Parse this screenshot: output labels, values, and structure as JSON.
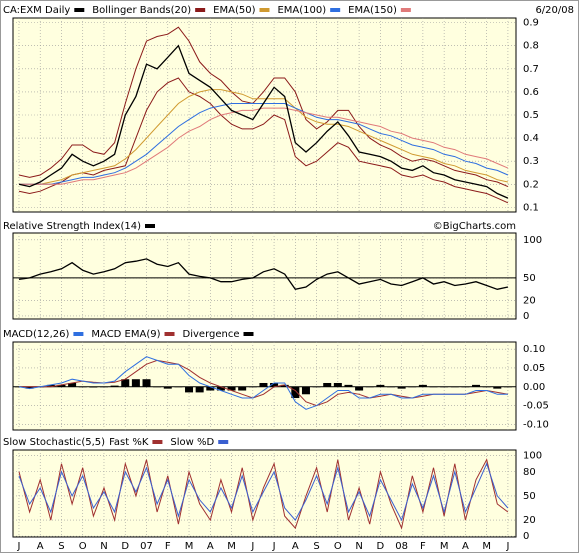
{
  "chart_data": [
    {
      "type": "line",
      "title": "CA:EXM Daily",
      "date": "6/20/08",
      "x": [
        0,
        0.5,
        1,
        1.5,
        2,
        2.5,
        3,
        3.5,
        4,
        4.5,
        5,
        5.5,
        6,
        6.5,
        7,
        7.5,
        8,
        8.5,
        9,
        9.5,
        10,
        10.5,
        11,
        11.5,
        12,
        12.5,
        13,
        13.5,
        14,
        14.5,
        15,
        15.5,
        16,
        16.5,
        17,
        17.5,
        18,
        18.5,
        19,
        19.5,
        20,
        20.5,
        21,
        21.5,
        22,
        22.5,
        23
      ],
      "xlim": [
        -0.28,
        23.38
      ],
      "ylim": [
        0.08,
        0.92
      ],
      "yticks": [
        0.1,
        0.2,
        0.3,
        0.4,
        0.5,
        0.6,
        0.7,
        0.8,
        0.9
      ],
      "grid": true,
      "series": [
        {
          "name": "Bollinger Bands(20)",
          "color": "#8b1a1a",
          "kind": "band",
          "upper": [
            0.24,
            0.23,
            0.24,
            0.27,
            0.31,
            0.37,
            0.37,
            0.34,
            0.33,
            0.38,
            0.55,
            0.7,
            0.82,
            0.84,
            0.85,
            0.88,
            0.82,
            0.73,
            0.68,
            0.65,
            0.6,
            0.56,
            0.55,
            0.6,
            0.66,
            0.66,
            0.6,
            0.48,
            0.44,
            0.47,
            0.52,
            0.52,
            0.45,
            0.4,
            0.37,
            0.35,
            0.32,
            0.3,
            0.31,
            0.3,
            0.28,
            0.26,
            0.25,
            0.24,
            0.22,
            0.21,
            0.19
          ],
          "lower": [
            0.17,
            0.16,
            0.17,
            0.19,
            0.21,
            0.24,
            0.25,
            0.24,
            0.26,
            0.27,
            0.28,
            0.4,
            0.52,
            0.6,
            0.64,
            0.66,
            0.6,
            0.58,
            0.55,
            0.5,
            0.46,
            0.44,
            0.44,
            0.46,
            0.5,
            0.48,
            0.32,
            0.28,
            0.3,
            0.34,
            0.38,
            0.36,
            0.3,
            0.29,
            0.28,
            0.27,
            0.24,
            0.23,
            0.24,
            0.22,
            0.21,
            0.19,
            0.18,
            0.17,
            0.16,
            0.14,
            0.12
          ]
        },
        {
          "name": "EMA(50)",
          "color": "#d09a30",
          "values": [
            0.2,
            0.2,
            0.2,
            0.21,
            0.22,
            0.24,
            0.25,
            0.26,
            0.27,
            0.28,
            0.31,
            0.35,
            0.4,
            0.45,
            0.5,
            0.55,
            0.58,
            0.6,
            0.61,
            0.61,
            0.6,
            0.59,
            0.57,
            0.57,
            0.57,
            0.57,
            0.53,
            0.49,
            0.47,
            0.46,
            0.46,
            0.45,
            0.43,
            0.41,
            0.39,
            0.37,
            0.35,
            0.33,
            0.32,
            0.31,
            0.29,
            0.28,
            0.26,
            0.25,
            0.24,
            0.22,
            0.21
          ]
        },
        {
          "name": "EMA(100)",
          "color": "#2f6fe0",
          "values": [
            0.2,
            0.2,
            0.2,
            0.2,
            0.21,
            0.22,
            0.23,
            0.23,
            0.24,
            0.25,
            0.27,
            0.3,
            0.33,
            0.37,
            0.41,
            0.45,
            0.48,
            0.51,
            0.53,
            0.54,
            0.55,
            0.55,
            0.55,
            0.55,
            0.55,
            0.55,
            0.53,
            0.51,
            0.49,
            0.48,
            0.48,
            0.47,
            0.46,
            0.44,
            0.42,
            0.41,
            0.39,
            0.37,
            0.36,
            0.35,
            0.33,
            0.32,
            0.3,
            0.29,
            0.27,
            0.26,
            0.24
          ]
        },
        {
          "name": "EMA(150)",
          "color": "#e07a7a",
          "values": [
            0.2,
            0.2,
            0.2,
            0.2,
            0.2,
            0.21,
            0.22,
            0.22,
            0.23,
            0.24,
            0.25,
            0.27,
            0.3,
            0.33,
            0.36,
            0.4,
            0.43,
            0.45,
            0.48,
            0.5,
            0.51,
            0.52,
            0.52,
            0.53,
            0.53,
            0.53,
            0.52,
            0.51,
            0.5,
            0.49,
            0.49,
            0.48,
            0.47,
            0.46,
            0.45,
            0.43,
            0.42,
            0.4,
            0.39,
            0.38,
            0.36,
            0.35,
            0.33,
            0.32,
            0.31,
            0.29,
            0.27
          ]
        },
        {
          "name": "CA:EXM Daily",
          "color": "#000000",
          "legend": false,
          "values": [
            0.2,
            0.19,
            0.21,
            0.24,
            0.27,
            0.33,
            0.3,
            0.28,
            0.3,
            0.33,
            0.5,
            0.58,
            0.72,
            0.7,
            0.75,
            0.8,
            0.68,
            0.65,
            0.62,
            0.57,
            0.52,
            0.5,
            0.48,
            0.55,
            0.62,
            0.58,
            0.38,
            0.34,
            0.38,
            0.43,
            0.47,
            0.41,
            0.34,
            0.33,
            0.32,
            0.3,
            0.27,
            0.26,
            0.28,
            0.25,
            0.24,
            0.22,
            0.21,
            0.2,
            0.19,
            0.16,
            0.14
          ]
        }
      ]
    },
    {
      "type": "line",
      "credit": "©BigCharts.com",
      "x": [
        0,
        0.5,
        1,
        1.5,
        2,
        2.5,
        3,
        3.5,
        4,
        4.5,
        5,
        5.5,
        6,
        6.5,
        7,
        7.5,
        8,
        8.5,
        9,
        9.5,
        10,
        10.5,
        11,
        11.5,
        12,
        12.5,
        13,
        13.5,
        14,
        14.5,
        15,
        15.5,
        16,
        16.5,
        17,
        17.5,
        18,
        18.5,
        19,
        19.5,
        20,
        20.5,
        21,
        21.5,
        22,
        22.5,
        23
      ],
      "xlim": [
        -0.28,
        23.38
      ],
      "ylim": [
        -4,
        109
      ],
      "yticks": [
        0,
        20,
        50,
        100
      ],
      "grid": true,
      "hline": 50,
      "series": [
        {
          "name": "Relative Strength Index(14)",
          "color": "#000000",
          "values": [
            48,
            50,
            55,
            58,
            62,
            70,
            60,
            55,
            58,
            62,
            70,
            72,
            75,
            68,
            65,
            70,
            55,
            52,
            50,
            45,
            45,
            48,
            50,
            58,
            62,
            55,
            35,
            38,
            48,
            55,
            58,
            50,
            42,
            45,
            48,
            42,
            40,
            45,
            50,
            42,
            45,
            40,
            42,
            45,
            40,
            35,
            38
          ]
        }
      ]
    },
    {
      "type": "line",
      "x": [
        0,
        0.5,
        1,
        1.5,
        2,
        2.5,
        3,
        3.5,
        4,
        4.5,
        5,
        5.5,
        6,
        6.5,
        7,
        7.5,
        8,
        8.5,
        9,
        9.5,
        10,
        10.5,
        11,
        11.5,
        12,
        12.5,
        13,
        13.5,
        14,
        14.5,
        15,
        15.5,
        16,
        16.5,
        17,
        17.5,
        18,
        18.5,
        19,
        19.5,
        20,
        20.5,
        21,
        21.5,
        22,
        22.5,
        23
      ],
      "xlim": [
        -0.28,
        23.38
      ],
      "ylim": [
        -0.115,
        0.119
      ],
      "grid": true,
      "hline": 0,
      "yticks": [
        {
          "value": -0.1,
          "label": "-0.10"
        },
        {
          "value": -0.05,
          "label": "-0.05"
        },
        {
          "value": 0,
          "label": "0.00"
        },
        {
          "value": 0.05,
          "label": "0.05"
        },
        {
          "value": 0.1,
          "label": "0.10"
        }
      ],
      "series": [
        {
          "name": "Divergence",
          "color": "#000000",
          "kind": "bar",
          "values": [
            0.0,
            -0.005,
            0.0,
            0.005,
            0.005,
            0.01,
            0.0,
            -0.002,
            0.0,
            0.003,
            0.02,
            0.02,
            0.02,
            0.0,
            -0.005,
            0.0,
            -0.015,
            -0.015,
            -0.01,
            -0.01,
            -0.01,
            -0.01,
            0.0,
            0.01,
            0.01,
            0.005,
            -0.03,
            -0.02,
            0.0,
            0.01,
            0.01,
            0.005,
            -0.01,
            0.0,
            0.005,
            0.0,
            -0.005,
            0.0,
            0.005,
            0.0,
            0.0,
            0.0,
            0.0,
            0.005,
            0.0,
            -0.005,
            0.0
          ]
        },
        {
          "name": "MACD EMA(9)",
          "color": "#a03030",
          "values": [
            0.0,
            0.0,
            0.0,
            0.0,
            0.005,
            0.01,
            0.015,
            0.012,
            0.01,
            0.012,
            0.02,
            0.04,
            0.06,
            0.07,
            0.065,
            0.06,
            0.045,
            0.025,
            0.01,
            0.0,
            -0.01,
            -0.02,
            -0.03,
            -0.02,
            0.0,
            0.005,
            -0.01,
            -0.04,
            -0.05,
            -0.04,
            -0.02,
            -0.015,
            -0.02,
            -0.03,
            -0.025,
            -0.02,
            -0.025,
            -0.03,
            -0.025,
            -0.02,
            -0.02,
            -0.02,
            -0.02,
            -0.015,
            -0.01,
            -0.015,
            -0.02
          ]
        },
        {
          "name": "MACD(12,26)",
          "color": "#2f6fe0",
          "values": [
            0.0,
            -0.005,
            0.0,
            0.005,
            0.01,
            0.02,
            0.015,
            0.01,
            0.01,
            0.015,
            0.04,
            0.06,
            0.08,
            0.07,
            0.06,
            0.06,
            0.03,
            0.01,
            0.0,
            -0.01,
            -0.02,
            -0.03,
            -0.03,
            -0.01,
            0.01,
            0.01,
            -0.04,
            -0.06,
            -0.05,
            -0.03,
            -0.01,
            -0.01,
            -0.03,
            -0.03,
            -0.02,
            -0.02,
            -0.03,
            -0.03,
            -0.02,
            -0.02,
            -0.02,
            -0.02,
            -0.02,
            -0.01,
            -0.01,
            -0.02,
            -0.02
          ]
        }
      ],
      "legend_order": [
        2,
        1,
        0
      ]
    },
    {
      "type": "line",
      "title": "Slow Stochastic(5,5)",
      "x": [
        0,
        0.5,
        1,
        1.5,
        2,
        2.5,
        3,
        3.5,
        4,
        4.5,
        5,
        5.5,
        6,
        6.5,
        7,
        7.5,
        8,
        8.5,
        9,
        9.5,
        10,
        10.5,
        11,
        11.5,
        12,
        12.5,
        13,
        13.5,
        14,
        14.5,
        15,
        15.5,
        16,
        16.5,
        17,
        17.5,
        18,
        18.5,
        19,
        19.5,
        20,
        20.5,
        21,
        21.5,
        22,
        22.5,
        23
      ],
      "xlim": [
        -0.28,
        23.38
      ],
      "ylim": [
        -1,
        107
      ],
      "yticks": [
        0,
        20,
        50,
        80,
        100
      ],
      "grid": true,
      "xticks": [
        {
          "value": 0,
          "label": "J"
        },
        {
          "value": 1,
          "label": "A"
        },
        {
          "value": 2,
          "label": "S"
        },
        {
          "value": 3,
          "label": "O"
        },
        {
          "value": 4,
          "label": "N"
        },
        {
          "value": 5,
          "label": "D"
        },
        {
          "value": 6,
          "label": "07"
        },
        {
          "value": 7,
          "label": "F"
        },
        {
          "value": 8,
          "label": "M"
        },
        {
          "value": 9,
          "label": "A"
        },
        {
          "value": 10,
          "label": "M"
        },
        {
          "value": 11,
          "label": "J"
        },
        {
          "value": 12,
          "label": "J"
        },
        {
          "value": 13,
          "label": "A"
        },
        {
          "value": 14,
          "label": "S"
        },
        {
          "value": 15,
          "label": "O"
        },
        {
          "value": 16,
          "label": "N"
        },
        {
          "value": 17,
          "label": "D"
        },
        {
          "value": 18,
          "label": "08"
        },
        {
          "value": 19,
          "label": "F"
        },
        {
          "value": 20,
          "label": "M"
        },
        {
          "value": 21,
          "label": "A"
        },
        {
          "value": 22,
          "label": "M"
        },
        {
          "value": 23,
          "label": "J"
        }
      ],
      "series": [
        {
          "name": "Fast %K",
          "color": "#a03030",
          "values": [
            80,
            30,
            70,
            20,
            90,
            40,
            85,
            25,
            60,
            20,
            90,
            50,
            95,
            30,
            75,
            15,
            80,
            40,
            20,
            70,
            30,
            85,
            20,
            60,
            90,
            25,
            10,
            50,
            85,
            30,
            95,
            20,
            60,
            15,
            80,
            40,
            10,
            75,
            30,
            85,
            25,
            90,
            20,
            70,
            95,
            40,
            30
          ]
        },
        {
          "name": "Slow %D",
          "color": "#3a5fd0",
          "values": [
            75,
            40,
            60,
            30,
            80,
            50,
            75,
            35,
            55,
            30,
            80,
            55,
            85,
            40,
            70,
            25,
            70,
            45,
            30,
            60,
            35,
            75,
            30,
            55,
            80,
            35,
            20,
            45,
            75,
            40,
            85,
            30,
            55,
            25,
            70,
            45,
            20,
            65,
            35,
            75,
            30,
            80,
            30,
            60,
            90,
            50,
            35
          ]
        }
      ]
    }
  ]
}
